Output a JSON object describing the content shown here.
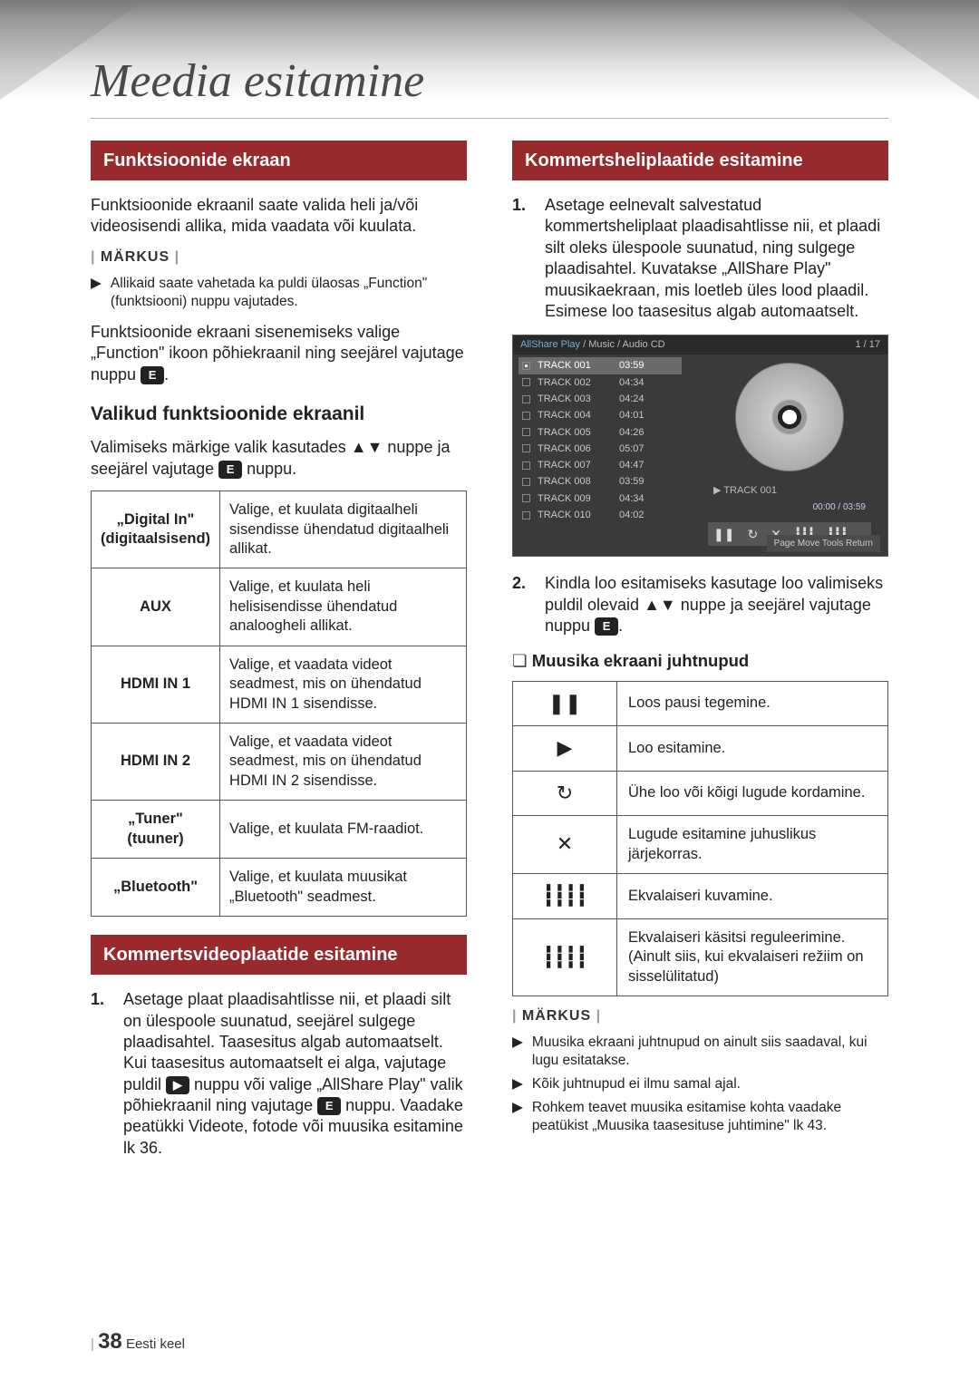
{
  "page": {
    "title": "Meedia esitamine",
    "number": "38",
    "lang": "Eesti keel"
  },
  "left": {
    "sec1_title": "Funktsioonide ekraan",
    "sec1_p1": "Funktsioonide ekraanil saate valida heli ja/või videosisendi allika, mida vaadata või kuulata.",
    "note_label": "MÄRKUS",
    "sec1_note1": "Allikaid saate vahetada ka puldi ülaosas „Function\" (funktsiooni) nuppu vajutades.",
    "sec1_p2a": "Funktsioonide ekraani sisenemiseks valige „Function\" ikoon põhiekraanil ning seejärel vajutage nuppu ",
    "sec1_p2b": ".",
    "sub1": "Valikud funktsioonide ekraanil",
    "sub1_p_a": "Valimiseks märkige valik kasutades ▲▼ nuppe ja seejärel vajutage ",
    "sub1_p_b": " nuppu.",
    "table1": {
      "rows": [
        {
          "label": "„Digital In\"\n(digitaalsisend)",
          "desc": "Valige, et kuulata digitaalheli sisendisse ühendatud digitaalheli allikat."
        },
        {
          "label": "AUX",
          "desc": "Valige, et kuulata  heli helisisendisse ühendatud analoogheli allikat."
        },
        {
          "label": "HDMI IN 1",
          "desc": "Valige, et vaadata videot seadmest, mis on ühendatud HDMI IN 1 sisendisse."
        },
        {
          "label": "HDMI IN 2",
          "desc": "Valige, et vaadata videot seadmest, mis on ühendatud HDMI IN 2 sisendisse."
        },
        {
          "label": "„Tuner\"\n(tuuner)",
          "desc": "Valige, et kuulata FM-raadiot."
        },
        {
          "label": "„Bluetooth\"",
          "desc": "Valige, et kuulata muusikat „Bluetooth\" seadmest."
        }
      ]
    },
    "sec2_title": "Kommertsvideoplaatide esitamine",
    "sec2_step1": "Asetage plaat plaadisahtlisse nii, et plaadi silt on ülespoole suunatud, seejärel sulgege plaadisahtel. Taasesitus algab automaatselt. Kui taasesitus automaatselt ei alga, vajutage puldil ",
    "sec2_step1b": " nuppu või valige „AllShare Play\" valik põhiekraanil ning vajutage ",
    "sec2_step1c": " nuppu. Vaadake peatükki Videote, fotode või muusika esitamine lk 36."
  },
  "right": {
    "sec1_title": "Kommertsheliplaatide esitamine",
    "step1": "Asetage eelnevalt salvestatud kommertsheliplaat plaadisahtlisse nii, et plaadi silt oleks ülespoole suunatud, ning sulgege plaadisahtel. Kuvatakse „AllShare Play\" muusikaekraan, mis loetleb üles lood plaadil. Esimese loo taasesitus algab automaatselt.",
    "player": {
      "breadcrumb_a": "AllShare Play",
      "breadcrumb_b": " / Music / ",
      "breadcrumb_c": "Audio CD",
      "count": "1 / 17",
      "tracks": [
        {
          "name": "TRACK 001",
          "time": "03:59",
          "sel": true
        },
        {
          "name": "TRACK 002",
          "time": "04:34"
        },
        {
          "name": "TRACK 003",
          "time": "04:24"
        },
        {
          "name": "TRACK 004",
          "time": "04:01"
        },
        {
          "name": "TRACK 005",
          "time": "04:26"
        },
        {
          "name": "TRACK 006",
          "time": "05:07"
        },
        {
          "name": "TRACK 007",
          "time": "04:47"
        },
        {
          "name": "TRACK 008",
          "time": "03:59"
        },
        {
          "name": "TRACK 009",
          "time": "04:34"
        },
        {
          "name": "TRACK 010",
          "time": "04:02"
        }
      ],
      "now": "TRACK 001",
      "time": "00:00 / 03:59",
      "footer": "Page Move    Tools    Return"
    },
    "step2a": "Kindla loo esitamiseks kasutage loo valimiseks puldil olevaid ▲▼ nuppe ja seejärel vajutage nuppu ",
    "step2b": ".",
    "sub1": "Muusika ekraani juhtnupud",
    "table2": {
      "rows": [
        {
          "icon": "pause",
          "desc": "Loos pausi tegemine."
        },
        {
          "icon": "play",
          "desc": "Loo esitamine."
        },
        {
          "icon": "repeat",
          "desc": "Ühe loo või kõigi lugude kordamine."
        },
        {
          "icon": "shuffle",
          "desc": "Lugude esitamine juhuslikus järjekorras."
        },
        {
          "icon": "eq",
          "desc": "Ekvalaiseri kuvamine."
        },
        {
          "icon": "eqset",
          "desc": "Ekvalaiseri käsitsi reguleerimine. (Ainult siis, kui ekvalaiseri režiim on sisselülitatud)"
        }
      ]
    },
    "note_label": "MÄRKUS",
    "notes": [
      "Muusika ekraani juhtnupud on ainult siis saadaval, kui lugu esitatakse.",
      "Kõik juhtnupud ei ilmu samal ajal.",
      "Rohkem teavet muusika esitamise kohta vaadake peatükist „Muusika taasesituse juhtimine\" lk 43."
    ]
  }
}
